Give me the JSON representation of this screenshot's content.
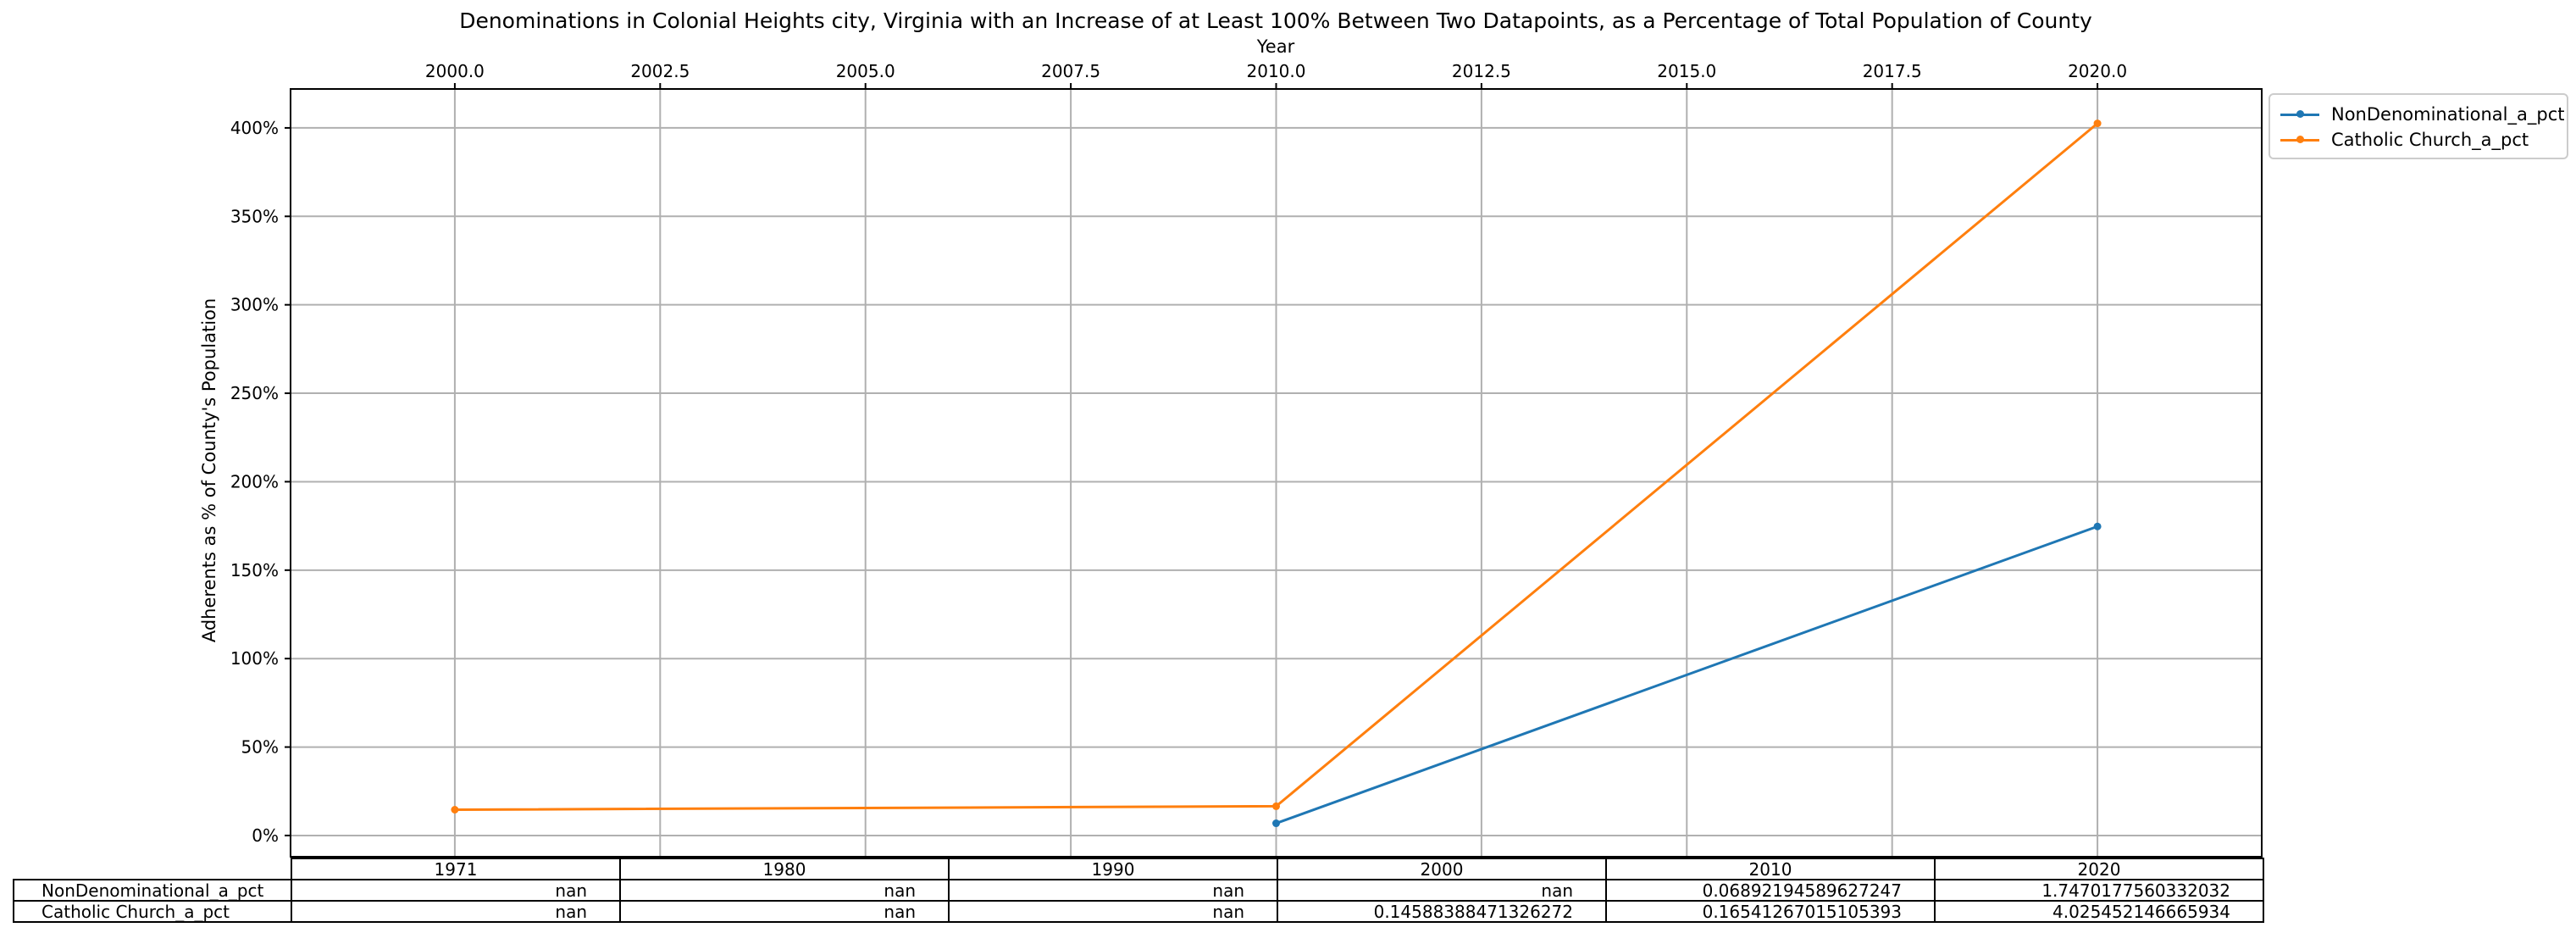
{
  "chart_data": {
    "type": "line",
    "title": "Denominations in Colonial Heights city, Virginia with an Increase of at Least 100% Between Two Datapoints, as a Percentage of Total Population of County",
    "xlabel": "Year",
    "ylabel": "Adherents as % of County's Population",
    "xlim": [
      1998.0,
      2022.0
    ],
    "ylim": [
      -0.12,
      4.22
    ],
    "x_ticks": [
      "2000.0",
      "2002.5",
      "2005.0",
      "2007.5",
      "2010.0",
      "2012.5",
      "2015.0",
      "2017.5",
      "2020.0"
    ],
    "y_ticks": [
      "0%",
      "50%",
      "100%",
      "150%",
      "200%",
      "250%",
      "300%",
      "350%",
      "400%"
    ],
    "grid": true,
    "legend_position": "outside top-right",
    "series": [
      {
        "name": "NonDenominational_a_pct",
        "color": "#1f77b4",
        "x": [
          2010,
          2020
        ],
        "y": [
          0.06892194589627247,
          1.7470177560332032
        ]
      },
      {
        "name": "Catholic Church_a_pct",
        "color": "#ff7f0e",
        "x": [
          2000,
          2010,
          2020
        ],
        "y": [
          0.14588388471326272,
          0.16541267015105393,
          4.025452146665934
        ]
      }
    ],
    "table": {
      "columns": [
        "1971",
        "1980",
        "1990",
        "2000",
        "2010",
        "2020"
      ],
      "rows": [
        {
          "label": "NonDenominational_a_pct",
          "cells": [
            "nan",
            "nan",
            "nan",
            "nan",
            "0.06892194589627247",
            "1.7470177560332032"
          ]
        },
        {
          "label": "Catholic Church_a_pct",
          "cells": [
            "nan",
            "nan",
            "nan",
            "0.14588388471326272",
            "0.16541267015105393",
            "4.025452146665934"
          ]
        }
      ]
    }
  }
}
